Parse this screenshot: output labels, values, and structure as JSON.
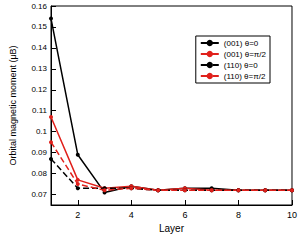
{
  "chart_data": {
    "type": "line",
    "x_label": "Layer",
    "y_label": "Orbital magnetic moment (μB)",
    "x": [
      1,
      2,
      3,
      4,
      5,
      6,
      7,
      8,
      9,
      10
    ],
    "xlim": [
      1,
      10
    ],
    "xticks": [
      2,
      4,
      6,
      8,
      10
    ],
    "ylim": [
      0.065,
      0.16
    ],
    "yticks": [
      0.07,
      0.08,
      0.09,
      0.1,
      0.11,
      0.12,
      0.13,
      0.14,
      0.15,
      0.16
    ],
    "grid": false,
    "legend": "upper right",
    "series": [
      {
        "name": "(001) θ=0",
        "color": "#000000",
        "marker": "circle",
        "line_style": "solid",
        "values": [
          0.154,
          0.089,
          0.071,
          0.074,
          0.072,
          0.073,
          0.073,
          0.072,
          0.072,
          0.072
        ]
      },
      {
        "name": "(001) θ=π/2",
        "color": "#e0201b",
        "marker": "circle",
        "line_style": "solid",
        "values": [
          0.107,
          0.077,
          0.073,
          0.074,
          0.072,
          0.073,
          0.072,
          0.072,
          0.072,
          0.072
        ]
      },
      {
        "name": "(110) θ=0",
        "color": "#000000",
        "marker": "circle",
        "line_style": "dashed",
        "values": [
          0.087,
          0.073,
          0.073,
          0.073,
          0.072,
          0.072,
          0.072,
          0.072,
          0.072,
          0.072
        ]
      },
      {
        "name": "(110) θ=π/2",
        "color": "#e0201b",
        "marker": "circle",
        "line_style": "dashed",
        "values": [
          0.095,
          0.075,
          0.072,
          0.073,
          0.072,
          0.072,
          0.072,
          0.072,
          0.072,
          0.072
        ]
      }
    ]
  }
}
